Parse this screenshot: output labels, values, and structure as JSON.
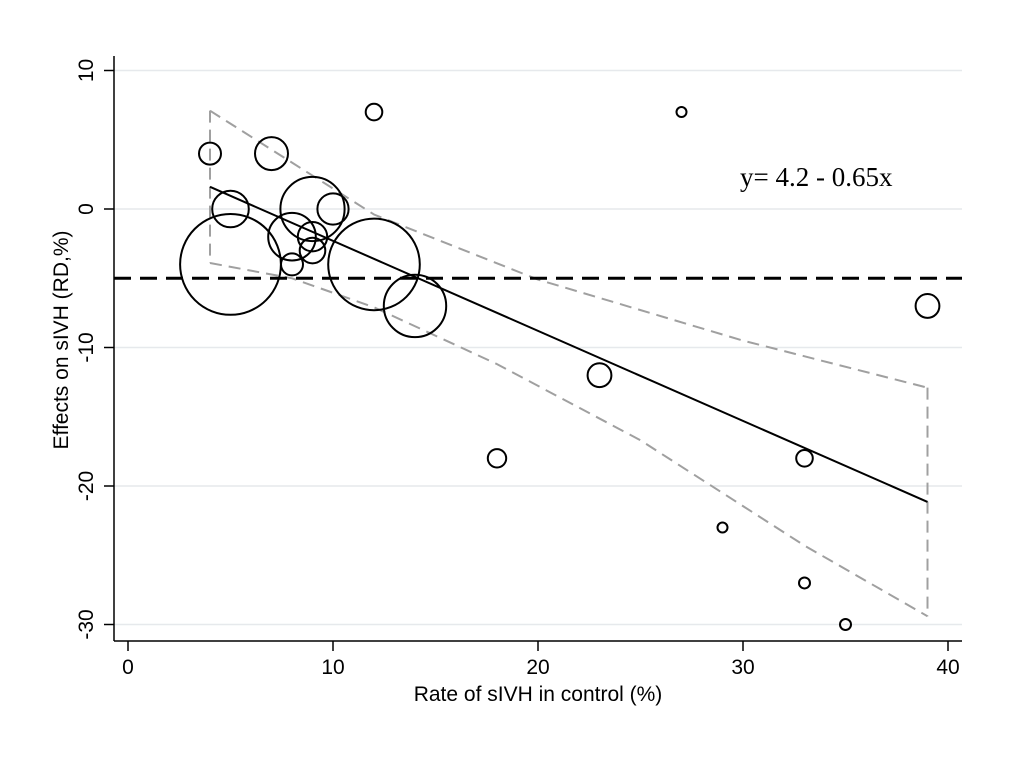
{
  "chart_data": {
    "type": "scatter",
    "xlabel": "Rate of sIVH in control (%)",
    "ylabel": "Effects on sIVH (RD,%)",
    "xlim": [
      0,
      40
    ],
    "ylim": [
      -30,
      10
    ],
    "xticks": [
      0,
      10,
      20,
      30,
      40
    ],
    "yticks": [
      10,
      0,
      -10,
      -20,
      -30
    ],
    "grid": true,
    "marker": "hollow-circle-weighted",
    "points": [
      {
        "x": 4,
        "y": 4,
        "weight": 1.2
      },
      {
        "x": 5,
        "y": 0,
        "weight": 2.0
      },
      {
        "x": 5,
        "y": -4,
        "weight": 5.5
      },
      {
        "x": 7,
        "y": 4,
        "weight": 1.8
      },
      {
        "x": 8,
        "y": -2,
        "weight": 2.6
      },
      {
        "x": 8,
        "y": -4,
        "weight": 1.2
      },
      {
        "x": 9,
        "y": 0,
        "weight": 3.5
      },
      {
        "x": 9,
        "y": -2,
        "weight": 1.6
      },
      {
        "x": 9,
        "y": -3,
        "weight": 1.4
      },
      {
        "x": 10,
        "y": 0,
        "weight": 1.7
      },
      {
        "x": 12,
        "y": 7,
        "weight": 0.9
      },
      {
        "x": 12,
        "y": -4,
        "weight": 5.0
      },
      {
        "x": 14,
        "y": -7,
        "weight": 3.4
      },
      {
        "x": 18,
        "y": -18,
        "weight": 1.0
      },
      {
        "x": 23,
        "y": -12,
        "weight": 1.3
      },
      {
        "x": 27,
        "y": 7,
        "weight": 0.3
      },
      {
        "x": 29,
        "y": -23,
        "weight": 0.5
      },
      {
        "x": 33,
        "y": -18,
        "weight": 0.9
      },
      {
        "x": 33,
        "y": -27,
        "weight": 0.6
      },
      {
        "x": 35,
        "y": -30,
        "weight": 0.6
      },
      {
        "x": 39,
        "y": -7,
        "weight": 1.3
      }
    ],
    "fit_line": {
      "equation": "y= 4.2 - 0.65x",
      "intercept": 4.2,
      "slope": -0.65,
      "x_range": [
        4,
        39
      ]
    },
    "confidence_band": {
      "upper": [
        [
          4,
          7.1
        ],
        [
          12,
          -0.4
        ],
        [
          20,
          -5.1
        ],
        [
          30,
          -9.5
        ],
        [
          39,
          -12.9
        ]
      ],
      "lower": [
        [
          4,
          -3.9
        ],
        [
          8,
          -5.0
        ],
        [
          12,
          -7.1
        ],
        [
          18,
          -11.2
        ],
        [
          25,
          -16.7
        ],
        [
          33,
          -24.3
        ],
        [
          39,
          -29.4
        ]
      ]
    },
    "reference_line": {
      "y": -5
    }
  }
}
